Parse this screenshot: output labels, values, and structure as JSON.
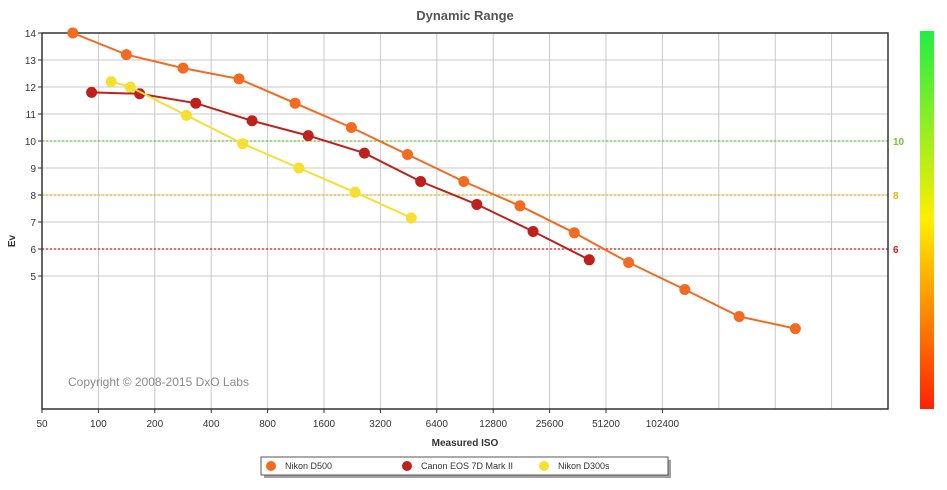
{
  "chart_data": {
    "type": "line",
    "title": "Dynamic Range",
    "xlabel": "Measured ISO",
    "ylabel": "Ev",
    "x_scale": "log2",
    "x_ticks": [
      50,
      100,
      200,
      400,
      800,
      1600,
      3200,
      6400,
      12800,
      25600,
      51200,
      102400
    ],
    "x_tick_labels": [
      "50",
      "100",
      "200",
      "400",
      "800",
      "1600",
      "3200",
      "6400",
      "12800",
      "25600",
      "51200",
      "102400"
    ],
    "xlim": [
      50,
      1638400
    ],
    "ylim": [
      0,
      14
    ],
    "y_ticks": [
      5,
      6,
      7,
      8,
      9,
      10,
      11,
      12,
      13,
      14
    ],
    "y_tick_labels": [
      "5",
      "6",
      "7",
      "8",
      "9",
      "10",
      "11",
      "12",
      "13",
      "14"
    ],
    "grid": true,
    "legend_position": "bottom",
    "reference_lines": [
      {
        "value": 10,
        "label": "10",
        "color": "#66cc33"
      },
      {
        "value": 8,
        "label": "8",
        "color": "#e6b800"
      },
      {
        "value": 6,
        "label": "6",
        "color": "#cc2222"
      }
    ],
    "color_scale": {
      "top": "#22ee44",
      "middle": "#ffee00",
      "bottom": "#ff2200"
    },
    "copyright": "Copyright © 2008-2015 DxO Labs",
    "series": [
      {
        "name": "Nikon D500",
        "color": "#f26b21",
        "x": [
          73,
          141,
          283,
          563,
          1122,
          2239,
          4467,
          8913,
          17783,
          34674,
          67608,
          134896,
          263027,
          524807
        ],
        "y": [
          14.0,
          13.2,
          12.7,
          12.3,
          11.4,
          10.5,
          9.5,
          8.5,
          7.6,
          6.6,
          5.5,
          4.5,
          3.5,
          3.05
        ]
      },
      {
        "name": "Canon EOS 7D Mark II",
        "color": "#c0201c",
        "x": [
          92,
          166,
          331,
          661,
          1318,
          2630,
          5248,
          10471,
          20893,
          41687
        ],
        "y": [
          11.8,
          11.75,
          11.4,
          10.75,
          10.2,
          9.55,
          8.5,
          7.65,
          6.65,
          5.6
        ]
      },
      {
        "name": "Nikon D300s",
        "color": "#f5e032",
        "x": [
          117,
          148,
          295,
          589,
          1175,
          2344,
          4677
        ],
        "y": [
          12.2,
          12.0,
          10.95,
          9.9,
          9.0,
          8.1,
          7.15
        ]
      }
    ]
  }
}
